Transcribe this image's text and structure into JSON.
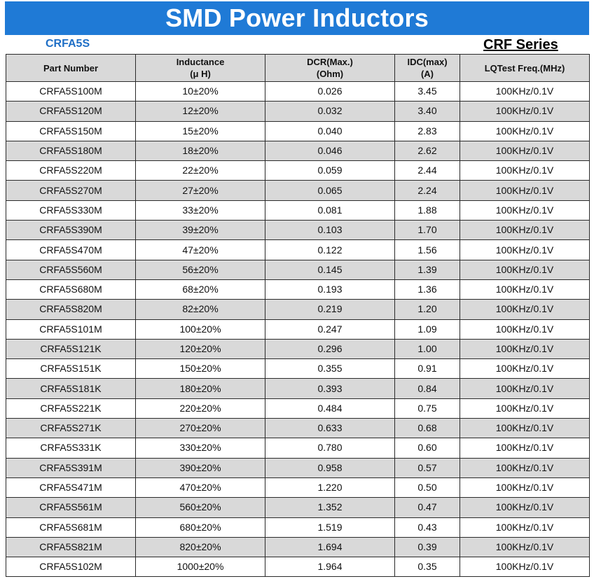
{
  "header": {
    "title": "SMD Power Inductors",
    "model": "CRFA5S",
    "series": "CRF Series"
  },
  "table": {
    "columns": [
      {
        "line1": "Part Number",
        "line2": ""
      },
      {
        "line1": "Inductance",
        "line2": "(μ H)"
      },
      {
        "line1": "DCR(Max.)",
        "line2": "(Ohm)"
      },
      {
        "line1": "IDC(max)",
        "line2": "(A)"
      },
      {
        "line1": "LQTest Freq.(MHz)",
        "line2": ""
      }
    ],
    "rows": [
      [
        "CRFA5S100M",
        "10±20%",
        "0.026",
        "3.45",
        "100KHz/0.1V"
      ],
      [
        "CRFA5S120M",
        "12±20%",
        "0.032",
        "3.40",
        "100KHz/0.1V"
      ],
      [
        "CRFA5S150M",
        "15±20%",
        "0.040",
        "2.83",
        "100KHz/0.1V"
      ],
      [
        "CRFA5S180M",
        "18±20%",
        "0.046",
        "2.62",
        "100KHz/0.1V"
      ],
      [
        "CRFA5S220M",
        "22±20%",
        "0.059",
        "2.44",
        "100KHz/0.1V"
      ],
      [
        "CRFA5S270M",
        "27±20%",
        "0.065",
        "2.24",
        "100KHz/0.1V"
      ],
      [
        "CRFA5S330M",
        "33±20%",
        "0.081",
        "1.88",
        "100KHz/0.1V"
      ],
      [
        "CRFA5S390M",
        "39±20%",
        "0.103",
        "1.70",
        "100KHz/0.1V"
      ],
      [
        "CRFA5S470M",
        "47±20%",
        "0.122",
        "1.56",
        "100KHz/0.1V"
      ],
      [
        "CRFA5S560M",
        "56±20%",
        "0.145",
        "1.39",
        "100KHz/0.1V"
      ],
      [
        "CRFA5S680M",
        "68±20%",
        "0.193",
        "1.36",
        "100KHz/0.1V"
      ],
      [
        "CRFA5S820M",
        "82±20%",
        "0.219",
        "1.20",
        "100KHz/0.1V"
      ],
      [
        "CRFA5S101M",
        "100±20%",
        "0.247",
        "1.09",
        "100KHz/0.1V"
      ],
      [
        "CRFA5S121K",
        "120±20%",
        "0.296",
        "1.00",
        "100KHz/0.1V"
      ],
      [
        "CRFA5S151K",
        "150±20%",
        "0.355",
        "0.91",
        "100KHz/0.1V"
      ],
      [
        "CRFA5S181K",
        "180±20%",
        "0.393",
        "0.84",
        "100KHz/0.1V"
      ],
      [
        "CRFA5S221K",
        "220±20%",
        "0.484",
        "0.75",
        "100KHz/0.1V"
      ],
      [
        "CRFA5S271K",
        "270±20%",
        "0.633",
        "0.68",
        "100KHz/0.1V"
      ],
      [
        "CRFA5S331K",
        "330±20%",
        "0.780",
        "0.60",
        "100KHz/0.1V"
      ],
      [
        "CRFA5S391M",
        "390±20%",
        "0.958",
        "0.57",
        "100KHz/0.1V"
      ],
      [
        "CRFA5S471M",
        "470±20%",
        "1.220",
        "0.50",
        "100KHz/0.1V"
      ],
      [
        "CRFA5S561M",
        "560±20%",
        "1.352",
        "0.47",
        "100KHz/0.1V"
      ],
      [
        "CRFA5S681M",
        "680±20%",
        "1.519",
        "0.43",
        "100KHz/0.1V"
      ],
      [
        "CRFA5S821M",
        "820±20%",
        "1.694",
        "0.39",
        "100KHz/0.1V"
      ],
      [
        "CRFA5S102M",
        "1000±20%",
        "1.964",
        "0.35",
        "100KHz/0.1V"
      ]
    ]
  },
  "colors": {
    "banner": "#1f7ad6",
    "model_text": "#1f6fc6",
    "shaded_row": "#d9d9d9"
  }
}
